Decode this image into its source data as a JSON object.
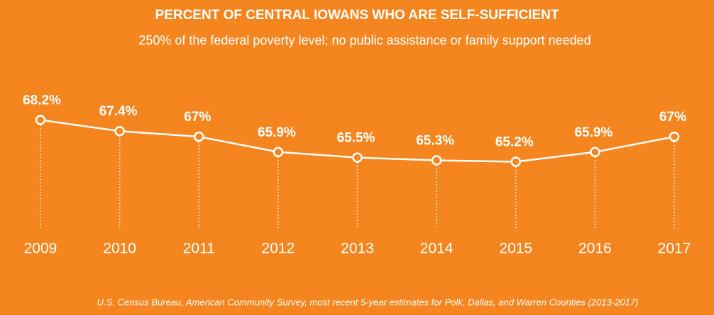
{
  "chart_data": {
    "type": "line",
    "title": "PERCENT OF CENTRAL IOWANS WHO ARE SELF-SUFFICIENT",
    "subtitle": "250% of the federal poverty level; no public assistance or family support needed",
    "source": "U.S. Census Bureau, American Community Survey, most recent 5-year estimates for Polk, Dallas, and Warren Counties (2013-2017)",
    "categories": [
      "2009",
      "2010",
      "2011",
      "2012",
      "2013",
      "2014",
      "2015",
      "2016",
      "2017"
    ],
    "series": [
      {
        "name": "Self-sufficient",
        "color": "#ffffff",
        "values": [
          68.2,
          67.4,
          67,
          65.9,
          65.5,
          65.3,
          65.2,
          65.9,
          67
        ],
        "value_labels": [
          "68.2%",
          "67.4%",
          "67%",
          "65.9%",
          "65.5%",
          "65.3%",
          "65.2%",
          "65.9%",
          "67%"
        ]
      }
    ],
    "ylim": [
      57,
      70
    ]
  }
}
